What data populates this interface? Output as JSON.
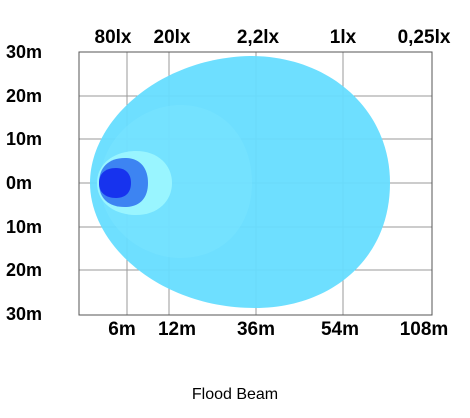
{
  "chart_data": {
    "type": "isolux-diagram",
    "caption": "Flood Beam",
    "lux_levels": [
      "80lx",
      "20lx",
      "2,2lx",
      "1lx",
      "0,25lx"
    ],
    "y_ticks": [
      "30m",
      "20m",
      "10m",
      "0m",
      "10m",
      "20m",
      "30m"
    ],
    "x_ticks": [
      "6m",
      "12m",
      "36m",
      "54m",
      "108m"
    ],
    "grid": true,
    "zones": [
      {
        "lux": "0,25lx",
        "reach_m": 108,
        "half_width_m": 30,
        "color": "#66ddff"
      },
      {
        "lux": "1lx",
        "reach_m": 54,
        "half_width_m": 18,
        "color": "#7ae3ff"
      },
      {
        "lux": "2,2lx",
        "reach_m": 12,
        "half_width_m": 3,
        "color": "#99f5ff"
      },
      {
        "lux": "20lx",
        "reach_m": 6,
        "half_width_m": 1.5,
        "color": "#3d84f2"
      },
      {
        "lux": "80lx",
        "reach_m": 3,
        "half_width_m": 1,
        "color": "#1733ee"
      }
    ]
  }
}
